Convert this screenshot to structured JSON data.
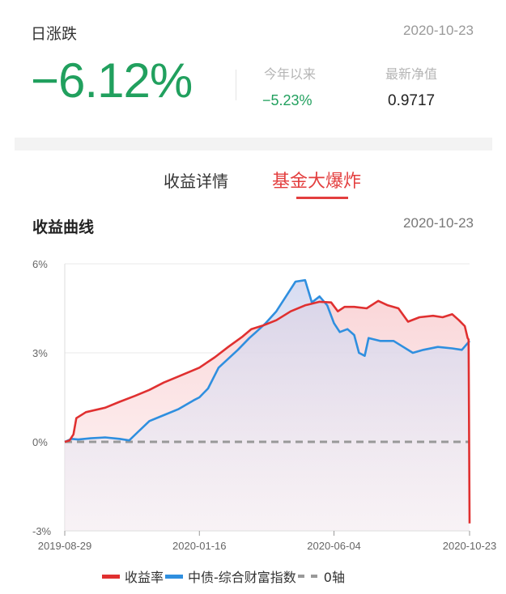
{
  "header": {
    "daily_label": "日涨跌",
    "date": "2020-10-23",
    "daily_change": "−6.12%",
    "ytd_label": "今年以来",
    "ytd_value": "−5.23%",
    "nav_label": "最新净值",
    "nav_value": "0.9717"
  },
  "tabs": [
    {
      "label": "收益详情",
      "active": false
    },
    {
      "label": "基金大爆炸",
      "active": true
    }
  ],
  "section": {
    "title": "收益曲线",
    "date": "2020-10-23"
  },
  "colors": {
    "up": "#e33e3e",
    "down": "#21a05e",
    "series_return": "#e03030",
    "series_index": "#2f8fdf",
    "zero_axis": "#999999"
  },
  "chart_data": {
    "type": "line",
    "ylim": [
      -3,
      6
    ],
    "yticks": [
      "6%",
      "3%",
      "0%",
      "-3%"
    ],
    "xticks": [
      "2019-08-29",
      "2020-01-16",
      "2020-06-04",
      "2020-10-23"
    ],
    "x_range": [
      "2019-08-29",
      "2020-10-23"
    ],
    "grid": "horizontal",
    "legend_position": "bottom",
    "series": [
      {
        "name": "收益率",
        "points": [
          [
            "2019-08-29",
            0.0
          ],
          [
            "2019-09-03",
            0.05
          ],
          [
            "2019-09-07",
            0.25
          ],
          [
            "2019-09-10",
            0.8
          ],
          [
            "2019-09-20",
            1.0
          ],
          [
            "2019-10-10",
            1.15
          ],
          [
            "2019-10-25",
            1.35
          ],
          [
            "2019-11-10",
            1.55
          ],
          [
            "2019-11-25",
            1.75
          ],
          [
            "2019-12-10",
            2.0
          ],
          [
            "2019-12-25",
            2.2
          ],
          [
            "2020-01-16",
            2.5
          ],
          [
            "2020-02-01",
            2.85
          ],
          [
            "2020-02-15",
            3.2
          ],
          [
            "2020-03-01",
            3.55
          ],
          [
            "2020-03-10",
            3.8
          ],
          [
            "2020-03-22",
            3.92
          ],
          [
            "2020-04-05",
            4.1
          ],
          [
            "2020-04-20",
            4.4
          ],
          [
            "2020-05-05",
            4.6
          ],
          [
            "2020-05-20",
            4.72
          ],
          [
            "2020-06-01",
            4.7
          ],
          [
            "2020-06-08",
            4.4
          ],
          [
            "2020-06-15",
            4.55
          ],
          [
            "2020-06-25",
            4.55
          ],
          [
            "2020-07-08",
            4.5
          ],
          [
            "2020-07-20",
            4.75
          ],
          [
            "2020-07-30",
            4.6
          ],
          [
            "2020-08-10",
            4.5
          ],
          [
            "2020-08-20",
            4.05
          ],
          [
            "2020-09-01",
            4.2
          ],
          [
            "2020-09-15",
            4.25
          ],
          [
            "2020-09-25",
            4.2
          ],
          [
            "2020-10-05",
            4.3
          ],
          [
            "2020-10-12",
            4.1
          ],
          [
            "2020-10-18",
            3.9
          ],
          [
            "2020-10-21",
            3.5
          ],
          [
            "2020-10-22",
            3.45
          ],
          [
            "2020-10-23",
            -2.75
          ]
        ]
      },
      {
        "name": "中债-综合财富指数",
        "points": [
          [
            "2019-08-29",
            0.0
          ],
          [
            "2019-09-05",
            0.1
          ],
          [
            "2019-09-12",
            0.08
          ],
          [
            "2019-09-25",
            0.12
          ],
          [
            "2019-10-10",
            0.15
          ],
          [
            "2019-10-25",
            0.1
          ],
          [
            "2019-11-04",
            0.05
          ],
          [
            "2019-11-12",
            0.3
          ],
          [
            "2019-11-25",
            0.7
          ],
          [
            "2019-12-10",
            0.9
          ],
          [
            "2019-12-25",
            1.1
          ],
          [
            "2020-01-10",
            1.4
          ],
          [
            "2020-01-16",
            1.5
          ],
          [
            "2020-01-25",
            1.8
          ],
          [
            "2020-02-05",
            2.5
          ],
          [
            "2020-02-15",
            2.8
          ],
          [
            "2020-02-25",
            3.1
          ],
          [
            "2020-03-08",
            3.5
          ],
          [
            "2020-03-15",
            3.7
          ],
          [
            "2020-03-25",
            4.0
          ],
          [
            "2020-04-05",
            4.4
          ],
          [
            "2020-04-15",
            4.9
          ],
          [
            "2020-04-25",
            5.4
          ],
          [
            "2020-05-05",
            5.45
          ],
          [
            "2020-05-12",
            4.7
          ],
          [
            "2020-05-20",
            4.9
          ],
          [
            "2020-05-28",
            4.6
          ],
          [
            "2020-06-04",
            4.0
          ],
          [
            "2020-06-10",
            3.7
          ],
          [
            "2020-06-18",
            3.8
          ],
          [
            "2020-06-25",
            3.6
          ],
          [
            "2020-06-30",
            3.0
          ],
          [
            "2020-07-06",
            2.9
          ],
          [
            "2020-07-10",
            3.5
          ],
          [
            "2020-07-22",
            3.4
          ],
          [
            "2020-08-05",
            3.4
          ],
          [
            "2020-08-15",
            3.2
          ],
          [
            "2020-08-25",
            3.0
          ],
          [
            "2020-09-05",
            3.1
          ],
          [
            "2020-09-20",
            3.2
          ],
          [
            "2020-10-05",
            3.15
          ],
          [
            "2020-10-15",
            3.1
          ],
          [
            "2020-10-23",
            3.4
          ]
        ]
      },
      {
        "name": "0轴",
        "points": [
          [
            "2019-08-29",
            0
          ],
          [
            "2020-10-23",
            0
          ]
        ]
      }
    ]
  }
}
